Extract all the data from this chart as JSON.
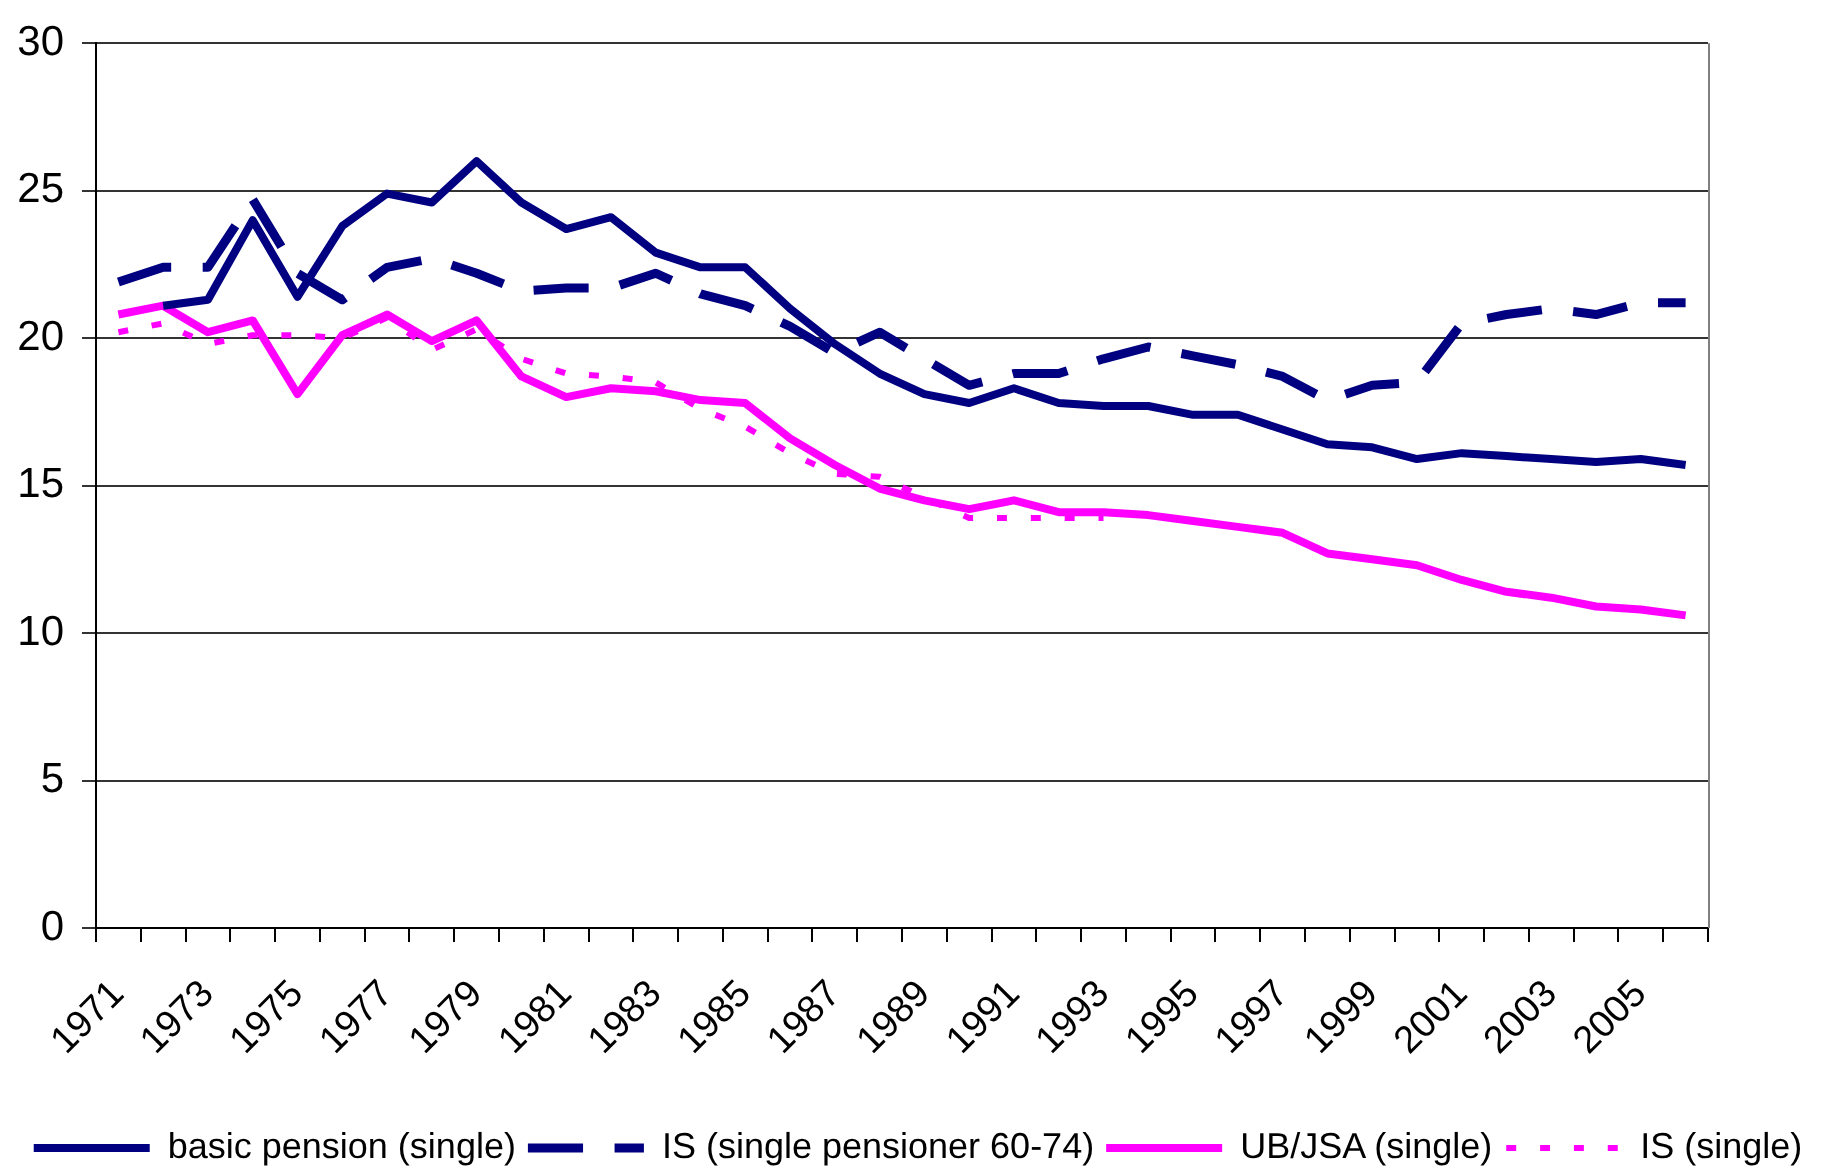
{
  "chart_data": {
    "type": "line",
    "categories": [
      "1971",
      null,
      "1973",
      null,
      "1975",
      null,
      "1977",
      null,
      "1979",
      null,
      "1981",
      null,
      "1983",
      null,
      "1985",
      null,
      "1987",
      null,
      "1989",
      null,
      "1991",
      null,
      "1993",
      null,
      "1995",
      null,
      "1997",
      null,
      "1999",
      null,
      "2001",
      null,
      "2003",
      null,
      "2005",
      null
    ],
    "ylim": [
      0,
      30
    ],
    "yticks": [
      0,
      5,
      10,
      15,
      20,
      25,
      30
    ],
    "grid": "y",
    "legend": "bottom",
    "series": [
      {
        "name": "basic pension (single)",
        "color": "#000080",
        "line_style": "solid",
        "values": [
          null,
          21.1,
          21.3,
          24.0,
          21.4,
          23.8,
          24.9,
          24.6,
          26.0,
          24.6,
          23.7,
          24.1,
          22.9,
          22.4,
          22.4,
          21.0,
          19.8,
          18.8,
          18.1,
          17.8,
          18.3,
          17.8,
          17.7,
          17.7,
          17.4,
          17.4,
          16.9,
          16.4,
          16.3,
          15.9,
          16.1,
          16.0,
          15.9,
          15.8,
          15.9,
          15.7
        ]
      },
      {
        "name": "IS (single pensioner 60-74)",
        "color": "#000080",
        "line_style": "dashed",
        "values": [
          21.9,
          22.4,
          22.4,
          24.7,
          22.2,
          21.3,
          22.4,
          22.7,
          22.2,
          21.6,
          21.7,
          21.7,
          22.2,
          21.5,
          21.1,
          20.4,
          19.5,
          20.2,
          19.3,
          18.4,
          18.8,
          18.8,
          19.3,
          19.7,
          19.4,
          19.1,
          18.7,
          17.9,
          18.4,
          18.5,
          20.5,
          20.8,
          21.0,
          20.8,
          21.2,
          21.2
        ]
      },
      {
        "name": "UB/JSA (single)",
        "color": "#ff00ff",
        "line_style": "solid",
        "values": [
          20.8,
          21.1,
          20.2,
          20.6,
          18.1,
          20.1,
          20.8,
          19.9,
          20.6,
          18.7,
          18.0,
          18.3,
          18.2,
          17.9,
          17.8,
          16.6,
          15.7,
          14.9,
          14.5,
          14.2,
          14.5,
          14.1,
          14.1,
          14.0,
          13.8,
          13.6,
          13.4,
          12.7,
          12.5,
          12.3,
          11.8,
          11.4,
          11.2,
          10.9,
          10.8,
          10.6
        ]
      },
      {
        "name": "IS (single)",
        "color": "#ff00ff",
        "line_style": "dotted",
        "values": [
          20.2,
          20.5,
          19.8,
          20.1,
          20.1,
          20.0,
          20.7,
          19.6,
          20.3,
          19.3,
          18.8,
          18.7,
          18.5,
          17.6,
          17.0,
          16.1,
          15.4,
          15.3,
          14.6,
          13.9,
          13.9,
          13.9,
          13.9,
          null,
          null,
          null,
          null,
          null,
          null,
          null,
          null,
          null,
          null,
          null,
          null,
          null
        ]
      }
    ]
  }
}
